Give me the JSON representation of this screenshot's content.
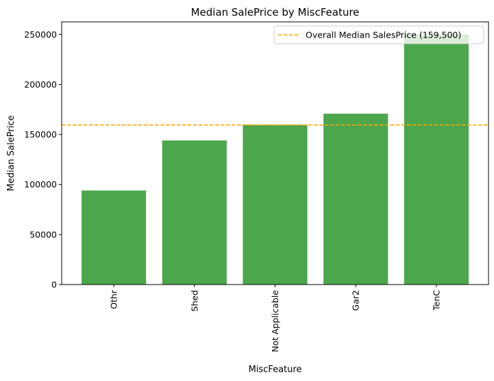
{
  "chart_data": {
    "type": "bar",
    "title": "Median SalePrice by MiscFeature",
    "xlabel": "MiscFeature",
    "ylabel": "Median SalePrice",
    "categories": [
      "Othr",
      "Shed",
      "Not Applicable",
      "Gar2",
      "TenC"
    ],
    "values": [
      94000,
      144000,
      159500,
      170750,
      250000
    ],
    "ylim": [
      0,
      262500
    ],
    "yticks": [
      0,
      50000,
      100000,
      150000,
      200000,
      250000
    ],
    "bar_color": "#4ca64c",
    "reference_line": {
      "value": 159500,
      "color": "#ffa500",
      "label": "Overall Median SalesPrice (159,500)"
    },
    "legend_position": "top-right",
    "grid": false
  }
}
